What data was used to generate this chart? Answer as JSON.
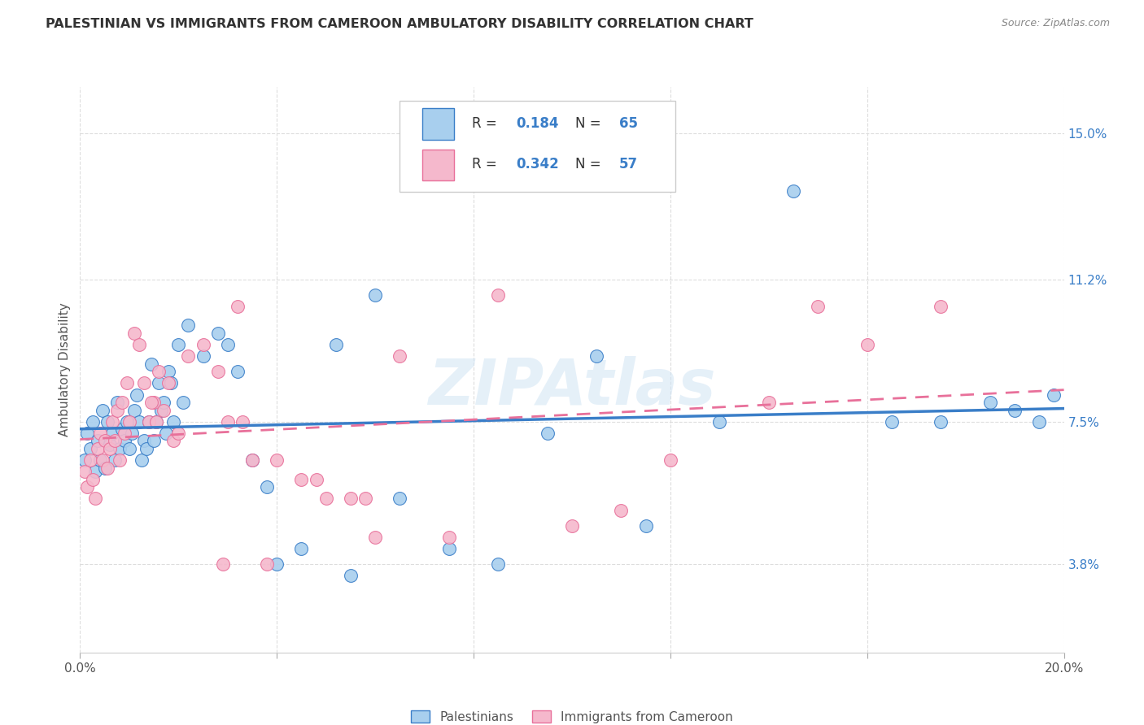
{
  "title": "PALESTINIAN VS IMMIGRANTS FROM CAMEROON AMBULATORY DISABILITY CORRELATION CHART",
  "source": "Source: ZipAtlas.com",
  "ylabel": "Ambulatory Disability",
  "yticks": [
    3.8,
    7.5,
    11.2,
    15.0
  ],
  "ytick_labels": [
    "3.8%",
    "7.5%",
    "11.2%",
    "15.0%"
  ],
  "xmin": 0.0,
  "xmax": 20.0,
  "ymin": 1.5,
  "ymax": 16.2,
  "legend1_r": "0.184",
  "legend1_n": "65",
  "legend2_r": "0.342",
  "legend2_n": "57",
  "blue_color": "#A8CFEE",
  "pink_color": "#F5B8CC",
  "blue_line_color": "#3A7EC8",
  "pink_line_color": "#E8709A",
  "watermark": "ZIPAtlas",
  "palestinians_x": [
    0.1,
    0.15,
    0.2,
    0.25,
    0.3,
    0.35,
    0.4,
    0.45,
    0.5,
    0.55,
    0.6,
    0.65,
    0.7,
    0.75,
    0.8,
    0.85,
    0.9,
    0.95,
    1.0,
    1.05,
    1.1,
    1.15,
    1.2,
    1.25,
    1.3,
    1.35,
    1.4,
    1.45,
    1.5,
    1.55,
    1.6,
    1.65,
    1.7,
    1.75,
    1.8,
    1.85,
    1.9,
    2.0,
    2.1,
    2.2,
    2.5,
    2.8,
    3.0,
    3.2,
    3.5,
    3.8,
    4.0,
    4.5,
    5.5,
    6.0,
    6.5,
    7.5,
    8.5,
    9.5,
    10.5,
    11.5,
    13.0,
    14.5,
    16.5,
    17.5,
    18.5,
    19.0,
    19.5,
    19.8,
    5.2
  ],
  "palestinians_y": [
    6.5,
    7.2,
    6.8,
    7.5,
    6.2,
    7.0,
    6.5,
    7.8,
    6.3,
    7.5,
    6.9,
    7.2,
    6.5,
    8.0,
    6.8,
    7.3,
    7.0,
    7.5,
    6.8,
    7.2,
    7.8,
    8.2,
    7.5,
    6.5,
    7.0,
    6.8,
    7.5,
    9.0,
    7.0,
    7.5,
    8.5,
    7.8,
    8.0,
    7.2,
    8.8,
    8.5,
    7.5,
    9.5,
    8.0,
    10.0,
    9.2,
    9.8,
    9.5,
    8.8,
    6.5,
    5.8,
    3.8,
    4.2,
    3.5,
    10.8,
    5.5,
    4.2,
    3.8,
    7.2,
    9.2,
    4.8,
    7.5,
    13.5,
    7.5,
    7.5,
    8.0,
    7.8,
    7.5,
    8.2,
    9.5
  ],
  "cameroon_x": [
    0.1,
    0.15,
    0.2,
    0.25,
    0.3,
    0.35,
    0.4,
    0.45,
    0.5,
    0.55,
    0.6,
    0.65,
    0.7,
    0.75,
    0.8,
    0.85,
    0.9,
    0.95,
    1.0,
    1.1,
    1.2,
    1.3,
    1.4,
    1.5,
    1.6,
    1.7,
    1.8,
    1.9,
    2.0,
    2.2,
    2.5,
    2.8,
    3.0,
    3.2,
    3.5,
    3.8,
    4.0,
    4.5,
    5.0,
    5.5,
    6.5,
    7.5,
    8.5,
    10.0,
    11.0,
    12.0,
    14.0,
    15.0,
    16.0,
    17.5,
    5.8,
    1.45,
    1.55,
    2.9,
    3.3,
    4.8,
    6.0
  ],
  "cameroon_y": [
    6.2,
    5.8,
    6.5,
    6.0,
    5.5,
    6.8,
    7.2,
    6.5,
    7.0,
    6.3,
    6.8,
    7.5,
    7.0,
    7.8,
    6.5,
    8.0,
    7.2,
    8.5,
    7.5,
    9.8,
    9.5,
    8.5,
    7.5,
    8.0,
    8.8,
    7.8,
    8.5,
    7.0,
    7.2,
    9.2,
    9.5,
    8.8,
    7.5,
    10.5,
    6.5,
    3.8,
    6.5,
    6.0,
    5.5,
    5.5,
    9.2,
    4.5,
    10.8,
    4.8,
    5.2,
    6.5,
    8.0,
    10.5,
    9.5,
    10.5,
    5.5,
    8.0,
    7.5,
    3.8,
    7.5,
    6.0,
    4.5
  ]
}
